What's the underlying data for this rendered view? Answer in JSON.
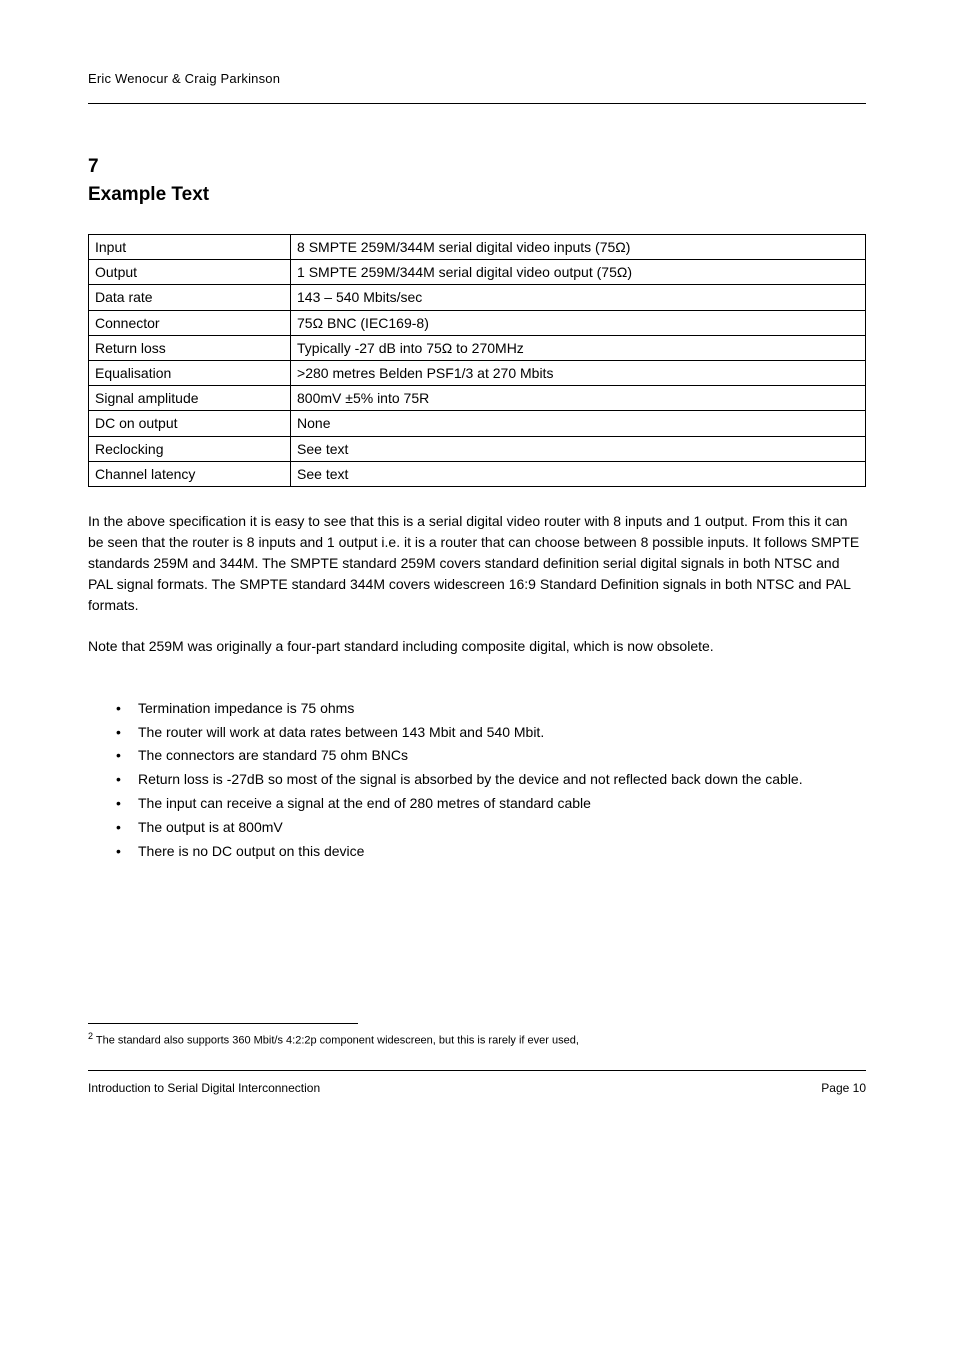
{
  "header": {
    "text": "Eric Wenocur & Craig Parkinson"
  },
  "section": {
    "number": "7",
    "title": "Example Text"
  },
  "table": {
    "rows": [
      {
        "label": "Input",
        "value": "8 SMPTE 259M/344M serial digital video inputs (75Ω)"
      },
      {
        "label": "Output",
        "value": "1 SMPTE 259M/344M serial digital video output (75Ω)"
      },
      {
        "label": "Data rate",
        "value": "143 – 540 Mbits/sec"
      },
      {
        "label": "Connector",
        "value": "75Ω BNC (IEC169-8)"
      },
      {
        "label": "Return loss",
        "value": "Typically -27 dB into 75Ω to 270MHz"
      },
      {
        "label": "Equalisation",
        "value": ">280 metres Belden PSF1/3 at 270 Mbits"
      },
      {
        "label": "Signal amplitude",
        "value": "800mV ±5% into 75R"
      },
      {
        "label": "DC on output",
        "value": "None"
      },
      {
        "label": "Reclocking",
        "value": "See text"
      },
      {
        "label": "Channel latency",
        "value": "See text"
      }
    ]
  },
  "paragraphs": {
    "intro": "In the above specification it is easy to see that this is a serial digital video router with 8 inputs and 1 output. From this it can be seen that the router is 8 inputs and 1 output i.e. it is a router that can choose between 8 possible inputs. It follows SMPTE standards 259M and 344M. The SMPTE standard 259M covers standard definition serial digital signals in both NTSC and PAL signal formats. The SMPTE standard 344M covers widescreen 16:9 Standard Definition signals in both NTSC and PAL formats.",
    "note": "Note that 259M was originally a four-part standard including composite digital, which is now obsolete."
  },
  "bullets": [
    "Termination impedance is 75 ohms",
    "The router will work at data rates between 143 Mbit and 540 Mbit.",
    "The connectors are standard 75 ohm BNCs",
    "Return loss is -27dB so most of the signal is absorbed by the device and not reflected back down the cable.",
    "The input can receive a signal at the end of 280 metres of standard cable",
    "The output is at 800mV",
    "There is no DC output on this device"
  ],
  "footnote": {
    "marker": "2",
    "text": " The standard also supports 360 Mbit/s 4:2:2p component widescreen, but this is rarely if ever used,"
  },
  "footer": {
    "left": "Introduction to Serial Digital Interconnection",
    "right": "Page 10"
  },
  "style": {
    "font_body_pt": 14,
    "font_header_pt": 13,
    "font_section_pt": 19,
    "font_footnote_pt": 11,
    "font_footer_pt": 12,
    "color_text": "#000000",
    "color_background": "#ffffff",
    "color_rule": "#000000",
    "table_label_col_width_pct": 26
  }
}
